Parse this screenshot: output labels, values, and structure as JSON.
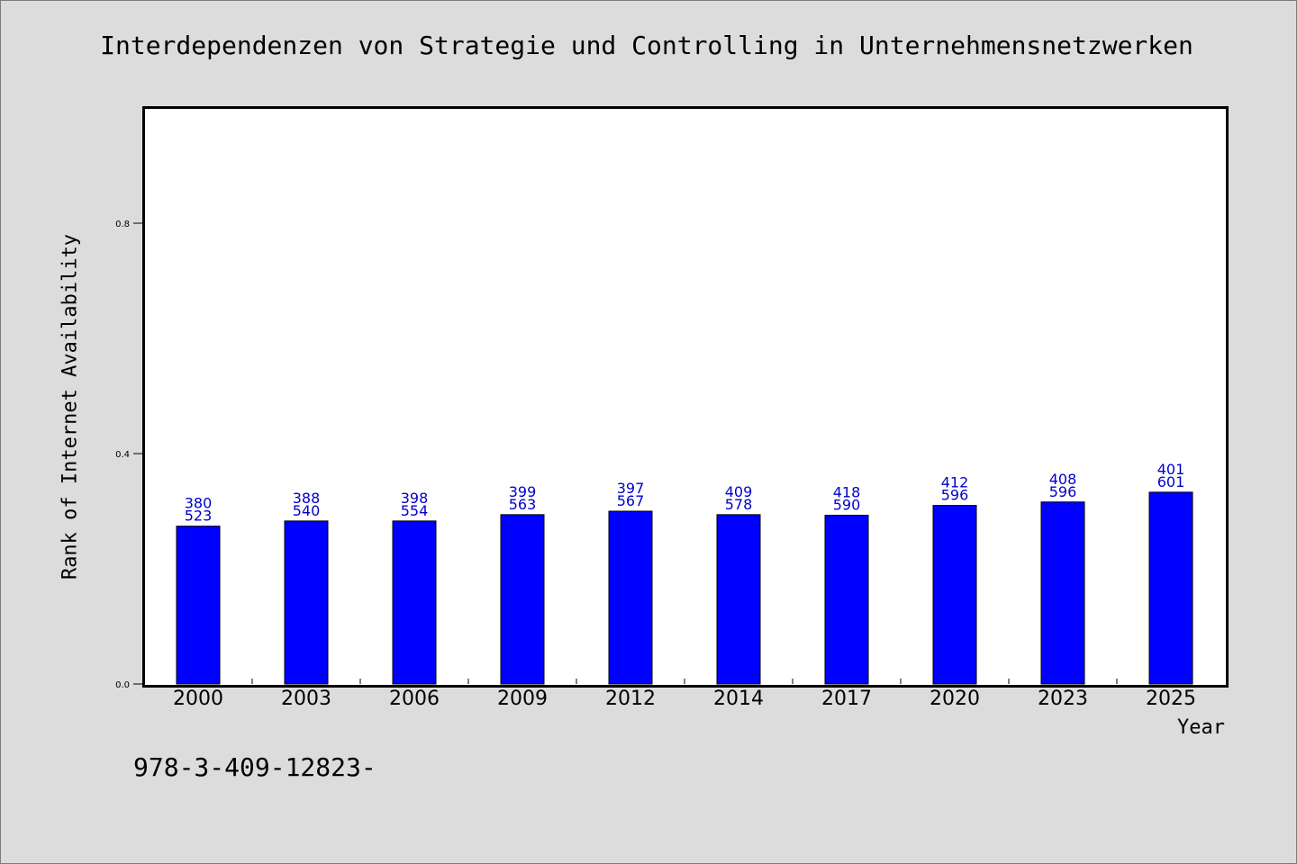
{
  "chart_data": {
    "type": "bar",
    "title": "Interdependenzen von Strategie und Controlling in Unternehmensnetzwerken",
    "xlabel": "Year",
    "ylabel": "Rank of Internet Availability",
    "categories": [
      "2000",
      "2003",
      "2006",
      "2009",
      "2012",
      "2014",
      "2017",
      "2020",
      "2023",
      "2025"
    ],
    "values": [
      0.274,
      0.283,
      0.283,
      0.294,
      0.3,
      0.294,
      0.293,
      0.31,
      0.316,
      0.333
    ],
    "label_top": [
      "380",
      "388",
      "398",
      "399",
      "397",
      "409",
      "418",
      "412",
      "408",
      "401"
    ],
    "label_bottom": [
      "523",
      "540",
      "554",
      "563",
      "567",
      "578",
      "590",
      "596",
      "596",
      "601"
    ],
    "ylim": [
      0,
      1.0
    ],
    "yticks": [
      0.0,
      0.4,
      0.8
    ],
    "ytick_labels": [
      "0.0",
      "0.4",
      "0.8"
    ],
    "grid": false,
    "legend": "none",
    "colors": {
      "bar": "#0000ff",
      "label": "#0000cc",
      "plot_bg": "#ffffff",
      "page_bg": "#dcdcdc"
    }
  },
  "footer": {
    "code": "978-3-409-12823-"
  }
}
